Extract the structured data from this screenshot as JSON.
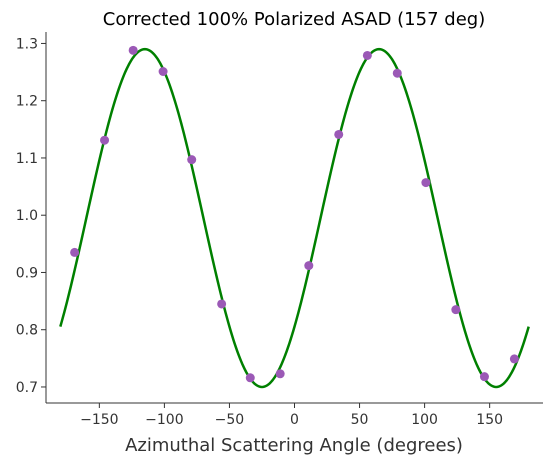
{
  "chart_data": {
    "type": "scatter",
    "title": "Corrected 100% Polarized ASAD (157 deg)",
    "xlabel": "Azimuthal Scattering Angle (degrees)",
    "ylabel": "",
    "xlim": [
      -191,
      191
    ],
    "ylim": [
      0.672,
      1.32
    ],
    "grid": false,
    "x_ticks": [
      -150,
      -100,
      -50,
      0,
      50,
      100,
      150
    ],
    "x_tick_labels": [
      "−150",
      "−100",
      "−50",
      "0",
      "50",
      "100",
      "150"
    ],
    "y_ticks": [
      0.7,
      0.8,
      0.9,
      1.0,
      1.1,
      1.2,
      1.3
    ],
    "y_tick_labels": [
      "0.7",
      "0.8",
      "0.9",
      "1.0",
      "1.1",
      "1.2",
      "1.3"
    ],
    "colors": {
      "points": "#9b59b6",
      "fit": "#008000",
      "axes": "#333333"
    },
    "series": [
      {
        "type": "scatter",
        "x": [
          -169,
          -146,
          -124,
          -101,
          -79,
          -56,
          -34,
          -11,
          11,
          34,
          56,
          79,
          101,
          124,
          146,
          169
        ],
        "y": [
          0.935,
          1.131,
          1.288,
          1.251,
          1.097,
          0.845,
          0.716,
          0.723,
          0.912,
          1.141,
          1.279,
          1.248,
          1.057,
          0.835,
          0.718,
          0.749
        ]
      },
      {
        "type": "line",
        "model": "y = 0.995 + 0.295*cos(2*(x - 65 deg))",
        "fit": {
          "offset": 0.995,
          "amplitude": 0.295,
          "phase_deg": 65
        },
        "x_range": [
          -180,
          180
        ]
      }
    ]
  }
}
